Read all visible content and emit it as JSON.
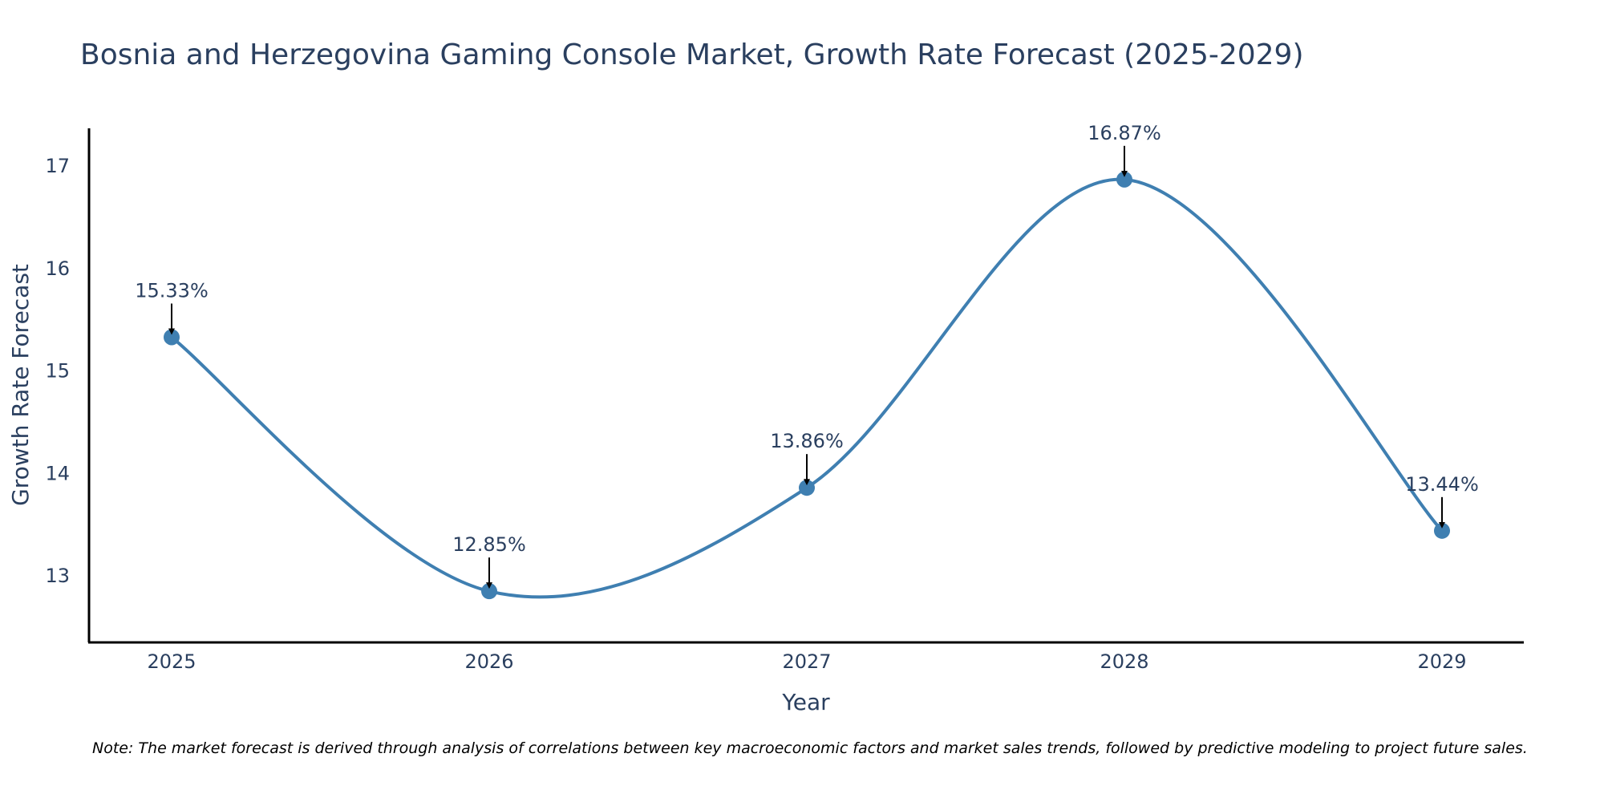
{
  "chart_data": {
    "type": "line",
    "title": "Bosnia and Herzegovina Gaming Console Market, Growth Rate Forecast (2025-2029)",
    "xlabel": "Year",
    "ylabel": "Growth Rate Forecast",
    "x": [
      "2025",
      "2026",
      "2027",
      "2028",
      "2029"
    ],
    "series": [
      {
        "name": "Growth Rate Forecast",
        "values": [
          15.33,
          12.85,
          13.86,
          16.87,
          13.44
        ],
        "labels": [
          "15.33%",
          "12.85%",
          "13.86%",
          "16.87%",
          "13.44%"
        ]
      }
    ],
    "ylim": [
      12.35,
      17.37
    ],
    "yticks": [
      13,
      14,
      15,
      16,
      17
    ],
    "ytick_labels": [
      "13",
      "14",
      "15",
      "16",
      "17"
    ],
    "grid": false,
    "line_shape": "spline",
    "colors": {
      "line": "#3f7fb1",
      "marker": "#3f7fb1",
      "arrow": "#000000",
      "text": "#2a3f5f",
      "axis": "#000000"
    },
    "note": "Note: The market forecast is derived through analysis of correlations between key macroeconomic factors and market sales trends, followed by predictive modeling to project future sales."
  }
}
